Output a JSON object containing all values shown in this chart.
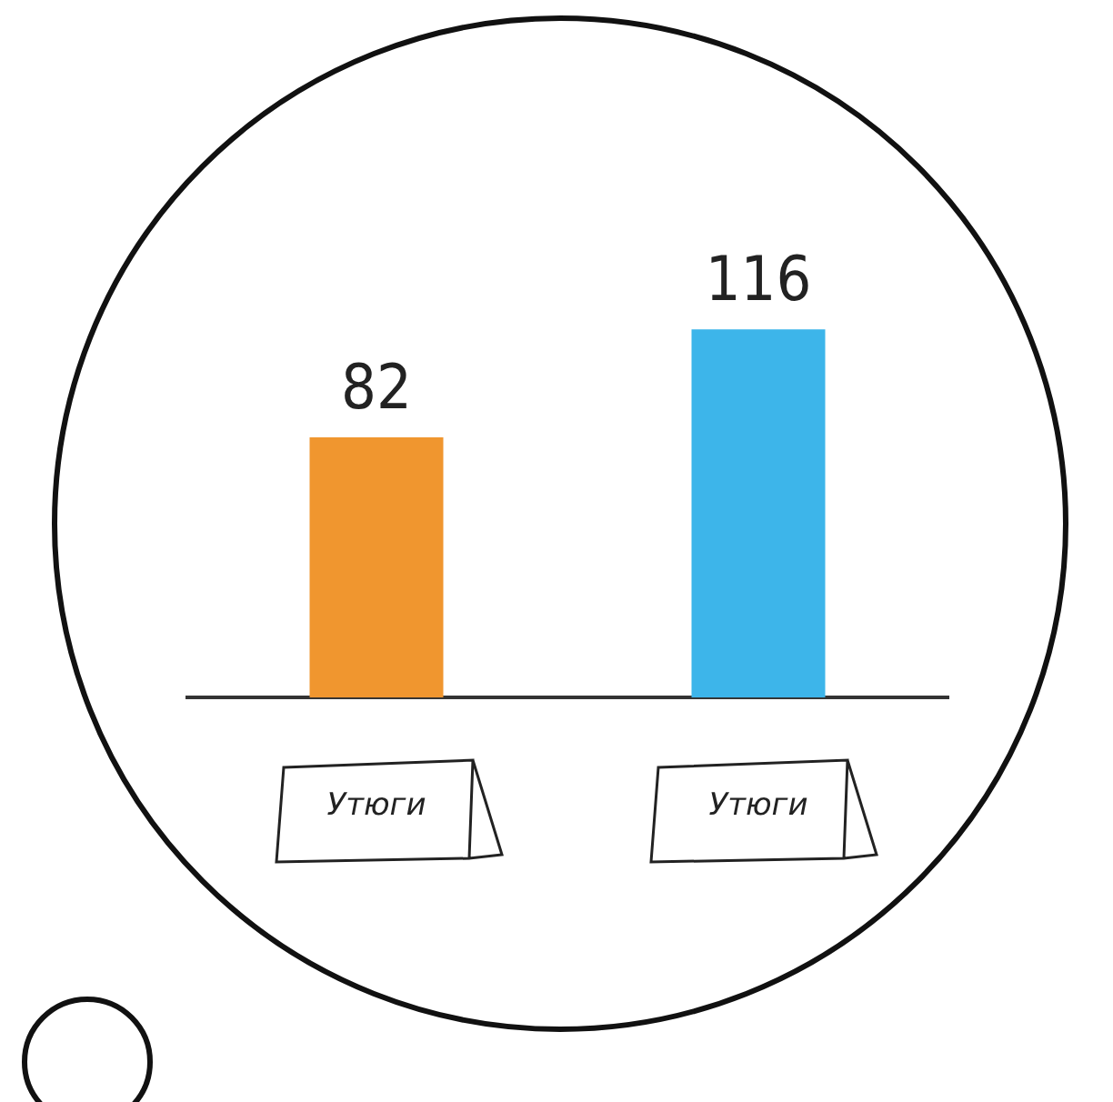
{
  "chart_data": {
    "type": "bar",
    "categories": [
      "Утюги",
      "Утюги"
    ],
    "values": [
      82,
      116
    ],
    "colors": [
      "#f0962f",
      "#3db5ea"
    ],
    "data_labels": true,
    "grid": false,
    "legend": false
  }
}
